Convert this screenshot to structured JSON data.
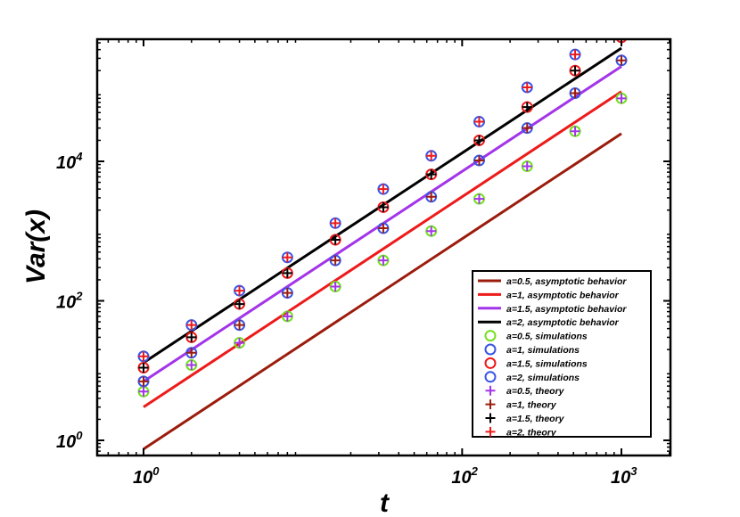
{
  "chart_data": {
    "type": "scatter",
    "xscale": "log",
    "yscale": "log",
    "xlim": [
      0.6,
      2500
    ],
    "ylim": [
      0.5,
      400000
    ],
    "xlabel": "t",
    "ylabel": "Var(x)",
    "x_ticks": [
      {
        "base": "10",
        "exp": "0",
        "value": 1
      },
      {
        "base": "10",
        "exp": "2",
        "value": 100
      },
      {
        "base": "10",
        "exp": "3",
        "value": 1000
      }
    ],
    "y_ticks": [
      {
        "base": "10",
        "exp": "0",
        "value": 1
      },
      {
        "base": "10",
        "exp": "2",
        "value": 100
      },
      {
        "base": "10",
        "exp": "4",
        "value": 10000
      }
    ],
    "grid": false,
    "legend_position": "bottom-right",
    "lines": [
      {
        "name": "a=0.5, asymptotic behavior",
        "color": "#9b1c0c",
        "x": [
          1,
          1000
        ],
        "y": [
          0.75,
          25000
        ]
      },
      {
        "name": "a=1, asymptotic behavior",
        "color": "#ee1a1a",
        "x": [
          1,
          1000
        ],
        "y": [
          3,
          100000
        ]
      },
      {
        "name": "a=1.5, asymptotic behavior",
        "color": "#a335e8",
        "x": [
          1,
          1000
        ],
        "y": [
          7,
          230000
        ]
      },
      {
        "name": "a=2, asymptotic behavior",
        "color": "#000000",
        "x": [
          1,
          1000
        ],
        "y": [
          13,
          420000
        ]
      }
    ],
    "simulations": [
      {
        "name": "a=0.5, simulations",
        "color": "#72e01e",
        "x": [
          1,
          2,
          4,
          8,
          16,
          32,
          64,
          128,
          256,
          512,
          1000
        ],
        "y": [
          5,
          12,
          25,
          60,
          160,
          380,
          1000,
          2900,
          8500,
          27000,
          80000
        ]
      },
      {
        "name": "a=1, simulations",
        "color": "#3a55e6",
        "x": [
          1,
          2,
          4,
          8,
          16,
          32,
          64,
          128,
          256,
          512,
          1000
        ],
        "y": [
          7,
          18,
          45,
          130,
          380,
          1100,
          3100,
          10300,
          30000,
          95000,
          280000
        ]
      },
      {
        "name": "a=1.5, simulations",
        "color": "#ee1a1a",
        "x": [
          1,
          2,
          4,
          8,
          16,
          32,
          64,
          128,
          256,
          512,
          1000
        ],
        "y": [
          11,
          30,
          90,
          250,
          750,
          2200,
          6500,
          20000,
          60000,
          200000,
          600000
        ]
      },
      {
        "name": "a=2, simulations",
        "color": "#3a55e6",
        "x": [
          1,
          2,
          4,
          8,
          16,
          32,
          64,
          128,
          256,
          512,
          1000
        ],
        "y": [
          16,
          45,
          140,
          420,
          1300,
          4000,
          12000,
          37000,
          115000,
          340000,
          1000000
        ]
      }
    ],
    "theory": [
      {
        "name": "a=0.5, theory",
        "color": "#a335e8",
        "x": [
          1,
          2,
          4,
          8,
          16,
          32,
          64,
          128,
          256,
          512,
          1000
        ],
        "y": [
          5,
          12,
          25,
          60,
          160,
          380,
          1000,
          2900,
          8500,
          27000,
          80000
        ]
      },
      {
        "name": "a=1, theory",
        "color": "#9b1c0c",
        "x": [
          1,
          2,
          4,
          8,
          16,
          32,
          64,
          128,
          256,
          512,
          1000
        ],
        "y": [
          7,
          18,
          45,
          130,
          380,
          1100,
          3100,
          10300,
          30000,
          95000,
          280000
        ]
      },
      {
        "name": "a=1.5, theory",
        "color": "#000000",
        "x": [
          1,
          2,
          4,
          8,
          16,
          32,
          64,
          128,
          256,
          512,
          1000
        ],
        "y": [
          11,
          30,
          90,
          250,
          750,
          2200,
          6500,
          20000,
          60000,
          200000,
          600000
        ]
      },
      {
        "name": "a=2, theory",
        "color": "#ee1a1a",
        "x": [
          1,
          2,
          4,
          8,
          16,
          32,
          64,
          128,
          256,
          512,
          1000
        ],
        "y": [
          16,
          45,
          140,
          420,
          1300,
          4000,
          12000,
          37000,
          115000,
          340000,
          1000000
        ]
      }
    ]
  }
}
